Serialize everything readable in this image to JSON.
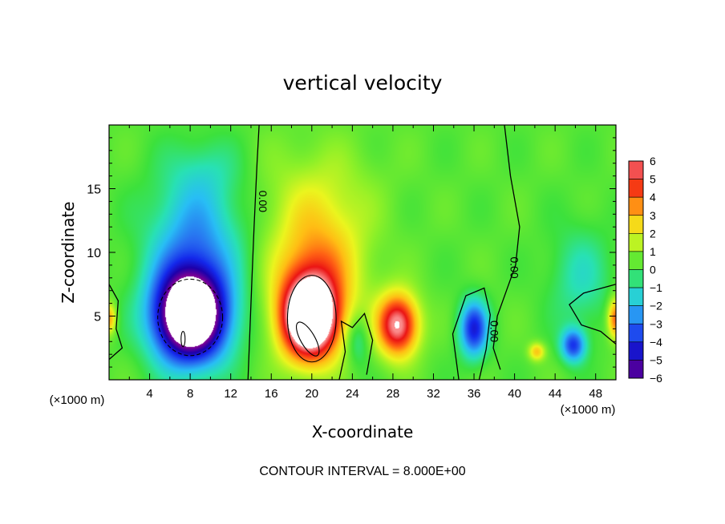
{
  "chart_data": {
    "type": "heatmap",
    "title": "vertical velocity",
    "xlabel": "X-coordinate",
    "ylabel": "Z-coordinate",
    "x_unit_left": "(×1000 m)",
    "x_unit_right": "(×1000 m)",
    "footer": "CONTOUR INTERVAL = 8.000E+00",
    "xlim": [
      0,
      50
    ],
    "ylim": [
      0,
      20
    ],
    "xticks": [
      4,
      8,
      12,
      16,
      20,
      24,
      28,
      32,
      36,
      40,
      44,
      48
    ],
    "xtick_labels": [
      "4",
      "8",
      "12",
      "16",
      "20",
      "24",
      "28",
      "32",
      "36",
      "40",
      "44",
      "48"
    ],
    "yticks": [
      5,
      10,
      15
    ],
    "ytick_labels": [
      "5",
      "10",
      "15"
    ],
    "colorbar": {
      "min": -6,
      "max": 6,
      "tick_values": [
        6,
        5,
        4,
        3,
        2,
        1,
        0,
        -1,
        -2,
        -3,
        -4,
        -5,
        -6
      ],
      "tick_labels": [
        "6",
        "5",
        "4",
        "3",
        "2",
        "1",
        "0",
        "−1",
        "−2",
        "−3",
        "−4",
        "−5",
        "−6"
      ]
    },
    "contour_labels": [
      {
        "text": "0.00",
        "x": 14.8,
        "z": 14.0
      },
      {
        "text": "0.00",
        "x": 39.6,
        "z": 8.8
      },
      {
        "text": "0.00",
        "x": 37.6,
        "z": 3.8
      }
    ],
    "features": [
      {
        "kind": "downdraft",
        "x": 8.0,
        "z": 5.0,
        "sx": 3.6,
        "sz": 3.6,
        "w": -10
      },
      {
        "kind": "downdraft",
        "x": 8.5,
        "z": 11.0,
        "sx": 4.5,
        "sz": 5.0,
        "w": -2.8
      },
      {
        "kind": "downdraft",
        "x": 9.5,
        "z": 16.5,
        "sx": 3.5,
        "sz": 2.5,
        "w": -0.8
      },
      {
        "kind": "updraft",
        "x": 19.8,
        "z": 4.8,
        "sx": 2.8,
        "sz": 3.2,
        "w": 9
      },
      {
        "kind": "updraft",
        "x": 20.5,
        "z": 9.0,
        "sx": 4.5,
        "sz": 5.0,
        "w": 3.0
      },
      {
        "kind": "updraft",
        "x": 20.5,
        "z": 15.0,
        "sx": 6.0,
        "sz": 4.0,
        "w": 0.8
      },
      {
        "kind": "updraft",
        "x": 28.5,
        "z": 4.3,
        "sx": 2.0,
        "sz": 2.4,
        "w": 6
      },
      {
        "kind": "downdraft",
        "x": 24.5,
        "z": 3.2,
        "sx": 1.2,
        "sz": 2.0,
        "w": -1.5
      },
      {
        "kind": "downdraft",
        "x": 36.0,
        "z": 4.0,
        "sx": 1.4,
        "sz": 2.2,
        "w": -4.5
      },
      {
        "kind": "downdraft",
        "x": 45.8,
        "z": 2.7,
        "sx": 1.2,
        "sz": 1.3,
        "w": -4
      },
      {
        "kind": "downdraft",
        "x": 46.5,
        "z": 8.0,
        "sx": 3.0,
        "sz": 4.0,
        "w": -1.4
      },
      {
        "kind": "updraft",
        "x": 50.0,
        "z": 4.8,
        "sx": 0.8,
        "sz": 1.6,
        "w": 4
      },
      {
        "kind": "updraft",
        "x": 0.0,
        "z": 4.8,
        "sx": 0.7,
        "sz": 1.2,
        "w": 3
      },
      {
        "kind": "updraft",
        "x": 42.2,
        "z": 2.2,
        "sx": 0.8,
        "sz": 0.7,
        "w": 2.5
      }
    ],
    "grid": false
  }
}
